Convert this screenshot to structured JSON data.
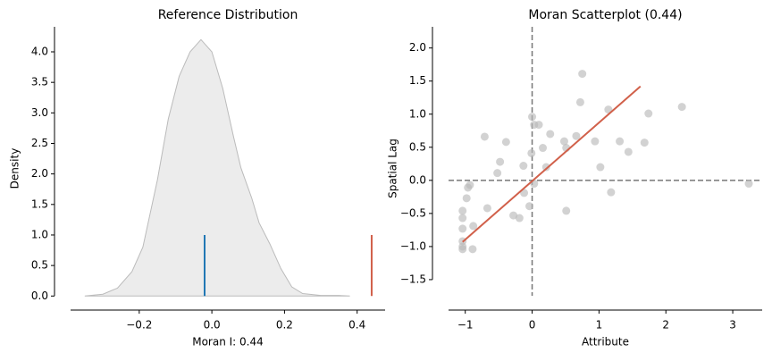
{
  "chart_data": [
    {
      "type": "area",
      "title": "Reference Distribution",
      "xlabel": "Moran I: 0.44",
      "ylabel": "Density",
      "x": [
        -0.35,
        -0.3,
        -0.26,
        -0.22,
        -0.19,
        -0.15,
        -0.12,
        -0.09,
        -0.06,
        -0.03,
        0.0,
        0.03,
        0.06,
        0.08,
        0.11,
        0.13,
        0.16,
        0.19,
        0.22,
        0.25,
        0.3,
        0.35,
        0.38
      ],
      "y": [
        0.0,
        0.03,
        0.13,
        0.4,
        0.8,
        1.9,
        2.9,
        3.6,
        4.0,
        4.2,
        4.0,
        3.4,
        2.6,
        2.1,
        1.6,
        1.2,
        0.85,
        0.45,
        0.15,
        0.04,
        0.01,
        0.01,
        0.0
      ],
      "color": "#ececec",
      "edge_color": "#bbbbbb",
      "markers": [
        {
          "x": -0.02,
          "height": 1.0,
          "color": "#1f77b4"
        },
        {
          "x": 0.44,
          "height": 1.0,
          "color": "#d1604a"
        }
      ],
      "xlim": [
        -0.389,
        0.477
      ],
      "ylim": [
        -0.23,
        4.41
      ],
      "xticks": [
        {
          "value": -0.2,
          "label": "−0.2"
        },
        {
          "value": 0,
          "label": "0.0"
        },
        {
          "value": 0.2,
          "label": "0.2"
        },
        {
          "value": 0.4,
          "label": "0.4"
        }
      ],
      "yticks": [
        {
          "value": 0,
          "label": "0.0"
        },
        {
          "value": 0.5,
          "label": "0.5"
        },
        {
          "value": 1,
          "label": "1.0"
        },
        {
          "value": 1.5,
          "label": "1.5"
        },
        {
          "value": 2,
          "label": "2.0"
        },
        {
          "value": 2.5,
          "label": "2.5"
        },
        {
          "value": 3,
          "label": "3.0"
        },
        {
          "value": 3.5,
          "label": "3.5"
        },
        {
          "value": 4,
          "label": "4.0"
        }
      ]
    },
    {
      "type": "scatter",
      "title": "Moran Scatterplot (0.44)",
      "xlabel": "Attribute",
      "ylabel": "Spatial Lag",
      "x": [
        0.72,
        0.75,
        1.14,
        1.74,
        2.24,
        -0.71,
        -0.39,
        0.0,
        0.03,
        0.1,
        0.27,
        0.48,
        0.66,
        0.16,
        0.51,
        -0.01,
        0.94,
        1.31,
        1.44,
        1.68,
        -0.48,
        -0.52,
        -0.13,
        0.21,
        1.02,
        -0.93,
        -0.96,
        0.03,
        1.18,
        3.24,
        -0.98,
        -1.04,
        -1.04,
        -0.67,
        -0.28,
        -0.19,
        -0.04,
        0.51,
        -1.04,
        -0.88,
        -1.04,
        -1.04,
        -1.04,
        -0.89,
        -0.12
      ],
      "y": [
        1.18,
        1.61,
        1.07,
        1.01,
        1.11,
        0.66,
        0.58,
        0.96,
        0.84,
        0.84,
        0.7,
        0.59,
        0.67,
        0.49,
        0.49,
        0.41,
        0.59,
        0.59,
        0.43,
        0.57,
        0.28,
        0.11,
        0.22,
        0.2,
        0.2,
        -0.07,
        -0.11,
        -0.05,
        -0.18,
        -0.05,
        -0.27,
        -0.46,
        -0.57,
        -0.42,
        -0.53,
        -0.57,
        -0.39,
        -0.46,
        -0.73,
        -0.69,
        -0.92,
        -1.0,
        -1.04,
        -1.04,
        -0.19
      ],
      "color": "#bababa",
      "fit_line": {
        "x": [
          -1.04,
          1.62
        ],
        "y": [
          -0.93,
          1.42
        ],
        "color": "#d1604a"
      },
      "reference_lines": {
        "x": 0,
        "y": 0
      },
      "xlim": [
        -1.25,
        3.44
      ],
      "ylim": [
        -1.96,
        2.32
      ],
      "xticks": [
        {
          "value": -1,
          "label": "−1"
        },
        0,
        1,
        2,
        3
      ],
      "yticks": [
        {
          "value": -1.5,
          "label": "−1.5"
        },
        {
          "value": -1,
          "label": "−1.0"
        },
        {
          "value": -0.5,
          "label": "−0.5"
        },
        {
          "value": 0,
          "label": "0.0"
        },
        {
          "value": 0.5,
          "label": "0.5"
        },
        {
          "value": 1,
          "label": "1.0"
        },
        {
          "value": 1.5,
          "label": "1.5"
        },
        {
          "value": 2,
          "label": "2.0"
        }
      ]
    }
  ]
}
